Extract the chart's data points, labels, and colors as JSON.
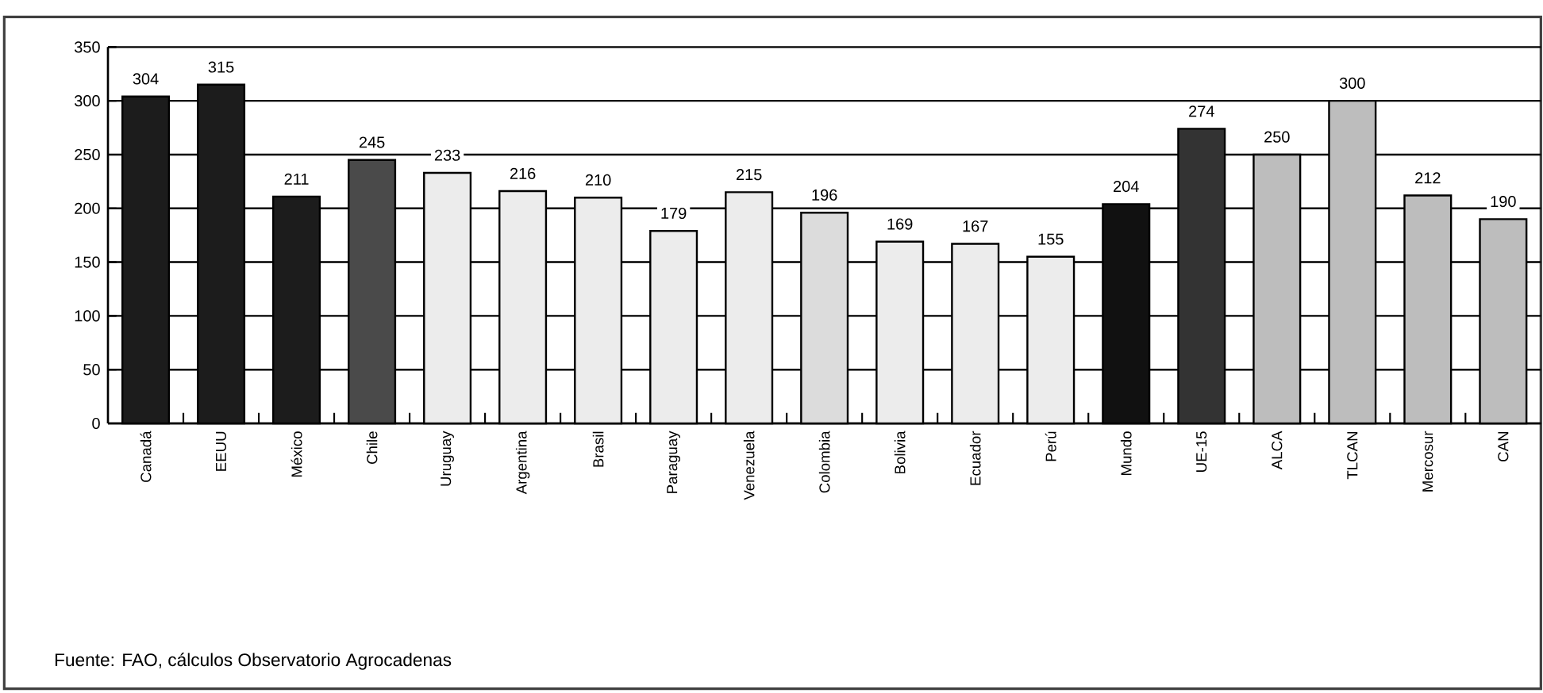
{
  "chart_data": {
    "type": "bar",
    "categories": [
      "Canadá",
      "EEUU",
      "México",
      "Chile",
      "Uruguay",
      "Argentina",
      "Brasil",
      "Paraguay",
      "Venezuela",
      "Colombia",
      "Bolivia",
      "Ecuador",
      "Perú",
      "Mundo",
      "UE-15",
      "ALCA",
      "TLCAN",
      "Mercosur",
      "CAN"
    ],
    "values": [
      304,
      315,
      211,
      245,
      233,
      216,
      210,
      179,
      215,
      196,
      169,
      167,
      155,
      204,
      274,
      250,
      300,
      212,
      190
    ],
    "colors": [
      "#1c1c1c",
      "#1c1c1c",
      "#1c1c1c",
      "#4a4a4a",
      "#ececec",
      "#ececec",
      "#ececec",
      "#ececec",
      "#ececec",
      "#dcdcdc",
      "#ececec",
      "#ececec",
      "#ececec",
      "#111111",
      "#333333",
      "#bdbdbd",
      "#bdbdbd",
      "#bdbdbd",
      "#bdbdbd"
    ],
    "ylim": [
      0,
      350
    ],
    "yticks": [
      0,
      50,
      100,
      150,
      200,
      250,
      300,
      350
    ],
    "grid": "y",
    "data_labels": true,
    "annotations": [
      "Fuente: FAO, cálculos Observatorio Agrocadenas"
    ]
  }
}
